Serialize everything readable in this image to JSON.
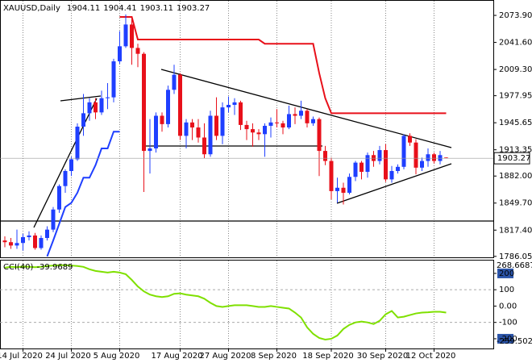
{
  "chart_data": [
    {
      "type": "candlestick",
      "title": "XAUUSD,Daily",
      "open": [
        1805,
        1803,
        1799,
        1802,
        1809,
        1811,
        1796,
        1808,
        1818,
        1842,
        1870,
        1888,
        1902,
        1941,
        1957,
        1970,
        1958,
        1975,
        1976,
        2019,
        2037,
        2063,
        2035,
        2028,
        1912,
        1915,
        1954,
        1944,
        1985,
        2003,
        1930,
        1946,
        1940,
        1928,
        1908,
        1954,
        1930,
        1964,
        1967,
        1970,
        1943,
        1938,
        1934,
        1932,
        1942,
        1946,
        1945,
        1940,
        1956,
        1954,
        1960,
        1945,
        1950,
        1912,
        1900,
        1864,
        1868,
        1862,
        1881,
        1898,
        1887,
        1907,
        1900,
        1913,
        1878,
        1888,
        1893,
        1930,
        1922,
        1892,
        1900,
        1908,
        1900,
        1904.11
      ],
      "high": [
        1810,
        1808,
        1818,
        1813,
        1816,
        1814,
        1811,
        1822,
        1845,
        1872,
        1890,
        1905,
        1945,
        1980,
        1975,
        1975,
        1984,
        1993,
        2022,
        2055,
        2075,
        2070,
        2040,
        2030,
        1950,
        1958,
        1958,
        1990,
        2015,
        2005,
        1950,
        1950,
        1950,
        1945,
        1960,
        1976,
        1970,
        1977,
        1975,
        1972,
        1948,
        1945,
        1938,
        1945,
        1952,
        1962,
        1948,
        1966,
        1964,
        1972,
        1962,
        1953,
        1952,
        1918,
        1904,
        1880,
        1874,
        1885,
        1900,
        1900,
        1910,
        1912,
        1918,
        1920,
        1894,
        1896,
        1932,
        1933,
        1926,
        1904,
        1915,
        1910,
        1912,
        1904.41
      ],
      "low": [
        1797,
        1795,
        1795,
        1793,
        1805,
        1794,
        1794,
        1805,
        1815,
        1838,
        1862,
        1882,
        1900,
        1930,
        1948,
        1950,
        1955,
        1962,
        1970,
        2016,
        2035,
        2015,
        2012,
        1863,
        1885,
        1910,
        1935,
        1940,
        1980,
        1925,
        1915,
        1925,
        1922,
        1903,
        1905,
        1925,
        1920,
        1958,
        1955,
        1937,
        1925,
        1917,
        1925,
        1905,
        1928,
        1940,
        1932,
        1938,
        1944,
        1950,
        1940,
        1942,
        1882,
        1895,
        1854,
        1850,
        1848,
        1860,
        1876,
        1878,
        1880,
        1893,
        1896,
        1875,
        1874,
        1885,
        1890,
        1918,
        1884,
        1888,
        1893,
        1897,
        1896,
        1903.11
      ],
      "close": [
        1803,
        1799,
        1802,
        1809,
        1811,
        1796,
        1808,
        1818,
        1842,
        1870,
        1888,
        1902,
        1941,
        1957,
        1970,
        1958,
        1975,
        1976,
        2019,
        2037,
        2063,
        2035,
        2028,
        1912,
        1915,
        1954,
        1944,
        1985,
        2003,
        1930,
        1946,
        1940,
        1928,
        1908,
        1954,
        1930,
        1964,
        1967,
        1970,
        1943,
        1938,
        1934,
        1932,
        1942,
        1946,
        1945,
        1940,
        1956,
        1954,
        1960,
        1945,
        1950,
        1912,
        1900,
        1864,
        1868,
        1862,
        1881,
        1898,
        1887,
        1907,
        1900,
        1913,
        1878,
        1888,
        1893,
        1930,
        1922,
        1892,
        1900,
        1908,
        1900,
        1907,
        1903.27
      ],
      "up_color": "#1f3fff",
      "down_color": "#e8101a",
      "lines": [
        {
          "color": "#e8101a",
          "values": [
            null,
            null,
            null,
            null,
            null,
            null,
            null,
            null,
            null,
            null,
            null,
            null,
            null,
            null,
            null,
            null,
            null,
            null,
            null,
            2072,
            2072,
            2072,
            2045,
            2045,
            2045,
            2045,
            2045,
            2045,
            2045,
            2045,
            2045,
            2045,
            2045,
            2045,
            2045,
            2045,
            2045,
            2045,
            2045,
            2045,
            2045,
            2045,
            2045,
            2040,
            2040,
            2040,
            2040,
            2040,
            2040,
            2040,
            2040,
            2040,
            2005,
            1975,
            1957,
            1957,
            1957,
            1957,
            1957,
            1957,
            1957,
            1957,
            1957,
            1957,
            1957,
            1957,
            1957,
            1957,
            1957,
            1957,
            1957,
            1957,
            1957,
            1957
          ]
        },
        {
          "color": "#1f3fff",
          "values": [
            null,
            null,
            null,
            null,
            null,
            null,
            null,
            1786,
            1805,
            1825,
            1845,
            1850,
            1862,
            1880,
            1880,
            1895,
            1915,
            1915,
            1935,
            1935,
            null,
            null,
            null,
            null,
            null,
            null,
            null,
            null,
            null,
            null,
            null,
            null,
            null,
            null,
            null,
            null,
            null,
            null,
            null,
            null,
            null,
            null,
            null,
            null,
            null,
            null,
            null,
            null,
            null,
            null,
            null,
            null,
            null,
            null,
            null,
            null,
            null,
            null,
            null,
            null,
            null,
            null,
            null,
            null,
            null,
            null,
            null,
            null,
            null,
            null,
            null,
            null,
            null,
            null
          ]
        }
      ],
      "ylim": [
        1784.9,
        2091.3
      ],
      "yticks": [
        {
          "value": 2073.9,
          "label": "2073.90"
        },
        {
          "value": 2041.6,
          "label": "2041.60"
        },
        {
          "value": 2009.3,
          "label": "2009.30"
        },
        {
          "value": 1977.95,
          "label": "1977.95"
        },
        {
          "value": 1945.65,
          "label": "1945.65"
        },
        {
          "value": 1913.35,
          "label": "1913.35"
        },
        {
          "value": 1882,
          "label": "1882.00"
        },
        {
          "value": 1849.7,
          "label": "1849.70"
        },
        {
          "value": 1817.4,
          "label": "1817.40"
        },
        {
          "value": 1786.05,
          "label": "1786.05"
        }
      ],
      "xlim": [
        -1,
        81
      ],
      "xticks": [
        {
          "value": 3,
          "label": "14 Jul 2020"
        },
        {
          "value": 11,
          "label": "24 Jul 2020"
        },
        {
          "value": 19,
          "label": "5 Aug 2020"
        },
        {
          "value": 29,
          "label": "17 Aug 2020"
        },
        {
          "value": 37,
          "label": "27 Aug 2020"
        },
        {
          "value": 45,
          "label": "8 Sep 2020"
        },
        {
          "value": 54,
          "label": "18 Sep 2020"
        },
        {
          "value": 63,
          "label": "30 Sep 2020"
        },
        {
          "value": 71,
          "label": "12 Oct 2020"
        }
      ],
      "grid": "x"
    },
    {
      "type": "line",
      "title": "CCI(40)",
      "series": [
        {
          "color": "#7fe000",
          "values": [
            235,
            240,
            238,
            242,
            240,
            238,
            240,
            245,
            248,
            250,
            250,
            248,
            245,
            240,
            225,
            215,
            210,
            205,
            210,
            205,
            195,
            160,
            120,
            90,
            70,
            60,
            55,
            60,
            75,
            78,
            70,
            65,
            60,
            45,
            20,
            0,
            -5,
            0,
            5,
            5,
            5,
            0,
            -5,
            -5,
            0,
            -5,
            -10,
            -15,
            -40,
            -70,
            -130,
            -170,
            -195,
            -205,
            -200,
            -180,
            -140,
            -115,
            -100,
            -95,
            -100,
            -110,
            -90,
            -50,
            -30,
            -70,
            -65,
            -55,
            -45,
            -40,
            -38,
            -35,
            -35,
            -39.9689
          ]
        }
      ],
      "ylim": [
        -259.5024,
        268.6687
      ],
      "yticks": [
        200,
        100,
        {
          "value": 0,
          "label": "0.00"
        },
        -100,
        -200
      ]
    }
  ]
}
